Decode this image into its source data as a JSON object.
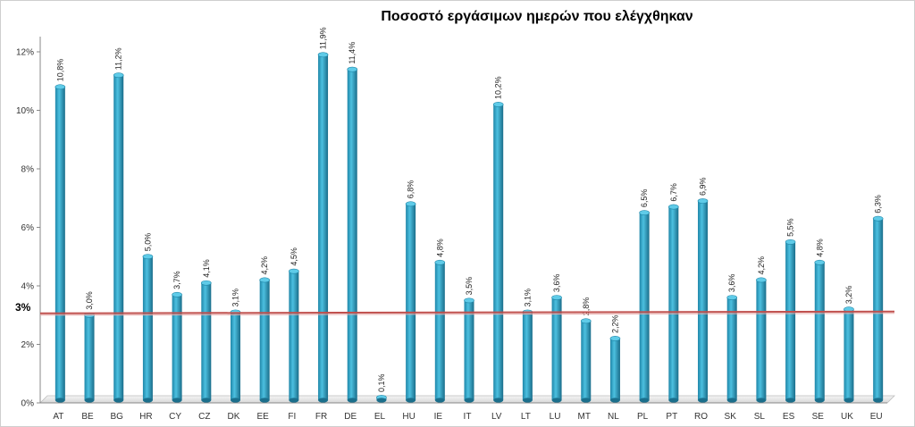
{
  "chart_data": {
    "type": "bar",
    "title": "Ποσοστό εργάσιμων ημερών που ελέγχθηκαν",
    "categories": [
      "AT",
      "BE",
      "BG",
      "HR",
      "CY",
      "CZ",
      "DK",
      "EE",
      "FI",
      "FR",
      "DE",
      "EL",
      "HU",
      "IE",
      "IT",
      "LV",
      "LT",
      "LU",
      "MT",
      "NL",
      "PL",
      "PT",
      "RO",
      "SK",
      "SL",
      "ES",
      "SE",
      "UK",
      "EU"
    ],
    "values": [
      10.8,
      3.0,
      11.2,
      5.0,
      3.7,
      4.1,
      3.1,
      4.2,
      4.5,
      11.9,
      11.4,
      0.1,
      6.8,
      4.8,
      3.5,
      10.2,
      3.1,
      3.6,
      2.8,
      2.2,
      6.5,
      6.7,
      6.9,
      3.6,
      4.2,
      5.5,
      4.8,
      3.2,
      6.3
    ],
    "data_labels": [
      "10,8%",
      "3,0%",
      "11,2%",
      "5,0%",
      "3,7%",
      "4,1%",
      "3,1%",
      "4,2%",
      "4,5%",
      "11,9%",
      "11,4%",
      "0,1%",
      "6,8%",
      "4,8%",
      "3,5%",
      "10,2%",
      "3,1%",
      "3,6%",
      "2,8%",
      "2,2%",
      "6,5%",
      "6,7%",
      "6,9%",
      "3,6%",
      "4,2%",
      "5,5%",
      "4,8%",
      "3,2%",
      "6,3%"
    ],
    "ylim": [
      0,
      12
    ],
    "yticks": [
      0,
      2,
      4,
      6,
      8,
      10,
      12
    ],
    "ytick_labels": [
      "0%",
      "2%",
      "4%",
      "6%",
      "8%",
      "10%",
      "12%"
    ],
    "reference_line": {
      "value": 3,
      "label": "3%",
      "color": "#c0504d"
    },
    "bar_color": "#31a2c6",
    "bar_dark_color": "#1b6f8c",
    "grid": false,
    "legend": "none"
  }
}
